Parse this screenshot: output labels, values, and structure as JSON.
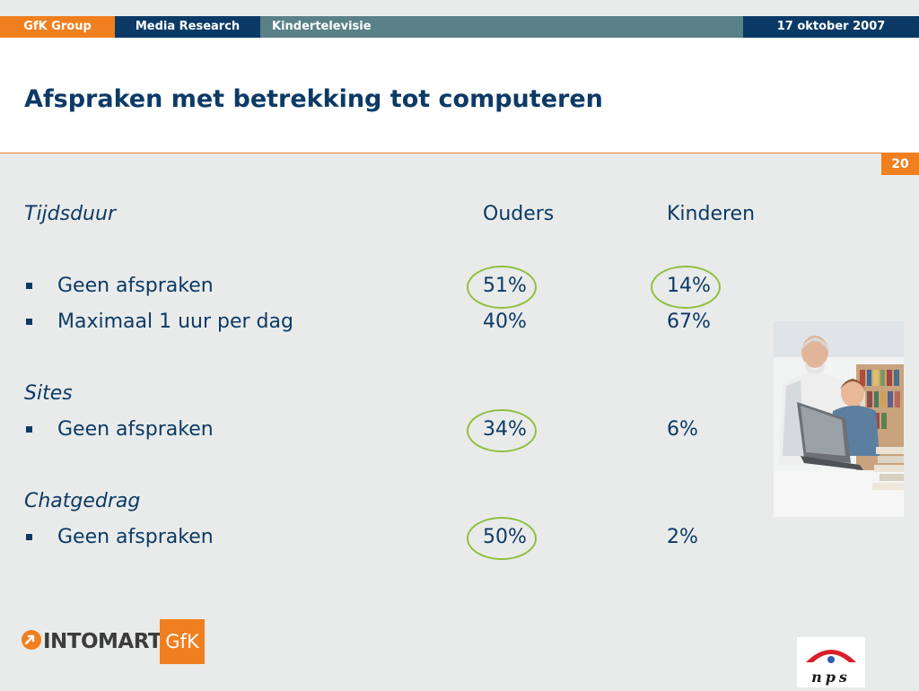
{
  "topbar": {
    "group": "GfK Group",
    "media": "Media Research",
    "topic": "Kindertelevisie",
    "date": "17 oktober 2007"
  },
  "title": "Afspraken met betrekking tot computeren",
  "page_number": "20",
  "columns": {
    "parents": "Ouders",
    "children": "Kinderen"
  },
  "sections": [
    {
      "heading": "Tijdsduur",
      "rows": [
        {
          "label": "Geen afspraken",
          "parents": "51%",
          "children": "14%"
        },
        {
          "label": "Maximaal 1 uur per dag",
          "parents": "40%",
          "children": "67%"
        }
      ]
    },
    {
      "heading": "Sites",
      "rows": [
        {
          "label": "Geen afspraken",
          "parents": "34%",
          "children": "6%"
        }
      ]
    },
    {
      "heading": "Chatgedrag",
      "rows": [
        {
          "label": "Geen afspraken",
          "parents": "50%",
          "children": "2%"
        }
      ]
    }
  ],
  "logos": {
    "intomart": "INTOMART",
    "gfk": "GfK",
    "nps": "nps"
  },
  "colors": {
    "accent_orange": "#f07f1f",
    "navy": "#0c3a66",
    "highlight_green": "#8fc03e"
  }
}
